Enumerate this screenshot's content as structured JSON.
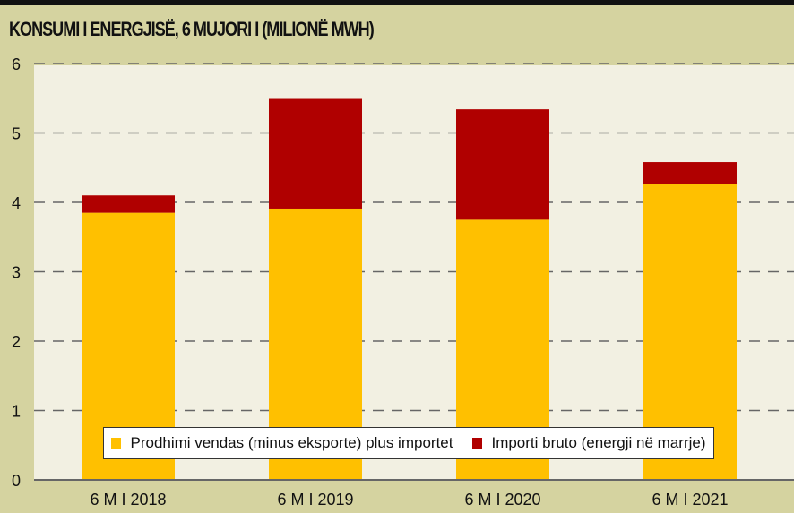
{
  "chart_data": {
    "type": "bar",
    "stacked": true,
    "title": "KONSUMI I ENERGJISË, 6 MUJORI I (MILIONË MWH)",
    "xlabel": "",
    "ylabel": "",
    "categories": [
      "6 M I 2018",
      "6 M I 2019",
      "6 M I 2020",
      "6 M I 2021"
    ],
    "series": [
      {
        "name": "Prodhimi vendas (minus eksporte) plus importet",
        "color": "#ffc000",
        "values": [
          3.85,
          3.91,
          3.75,
          4.26
        ]
      },
      {
        "name": "Importi bruto (energji në marrje)",
        "color": "#b00000",
        "values": [
          0.25,
          1.58,
          1.59,
          0.32
        ]
      }
    ],
    "ylim": [
      0,
      6
    ],
    "yticks": [
      "0",
      "1",
      "2",
      "3",
      "4",
      "5",
      "6"
    ],
    "grid": true,
    "legend": "bottom-inside"
  }
}
